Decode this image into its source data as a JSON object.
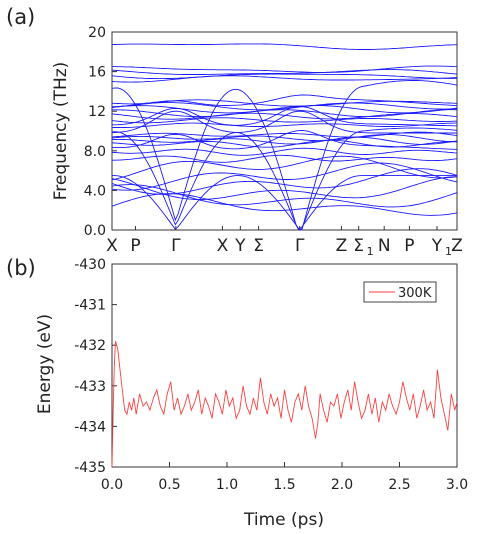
{
  "figure": {
    "panel_a_label": "(a)",
    "panel_b_label": "(b)"
  },
  "chart_data": [
    {
      "type": "line",
      "ylabel": "Frequency (THz)",
      "ylim": [
        0,
        20
      ],
      "yticks": [
        "0.0",
        "4.0",
        "8.0",
        "12",
        "16",
        "20"
      ],
      "xticks": [
        {
          "label": "X",
          "sub": "",
          "pos": 0.0
        },
        {
          "label": "P",
          "sub": "",
          "pos": 0.068
        },
        {
          "label": "Γ",
          "sub": "",
          "pos": 0.185
        },
        {
          "label": "X",
          "sub": "",
          "pos": 0.32
        },
        {
          "label": "Y",
          "sub": "",
          "pos": 0.372
        },
        {
          "label": "Σ",
          "sub": "",
          "pos": 0.425
        },
        {
          "label": "Γ",
          "sub": "",
          "pos": 0.544
        },
        {
          "label": "Z",
          "sub": "",
          "pos": 0.665
        },
        {
          "label": "Σ",
          "sub": "1",
          "pos": 0.715
        },
        {
          "label": "N",
          "sub": "",
          "pos": 0.789
        },
        {
          "label": "P",
          "sub": "",
          "pos": 0.862
        },
        {
          "label": "Y",
          "sub": "1",
          "pos": 0.942
        },
        {
          "label": "Z",
          "sub": "",
          "pos": 1.0
        }
      ],
      "series_color": "#1a1aff",
      "flat_band_levels": [
        18.6,
        16.2,
        15.9,
        15.6,
        15.3,
        12.8,
        12.5,
        12.2,
        11.8,
        11.5,
        11.1,
        10.6,
        9.6,
        9.3,
        9.0,
        8.7,
        7.9,
        7.2
      ],
      "acoustic_zero_points": [
        0.185,
        0.544
      ]
    },
    {
      "type": "line",
      "xlabel": "Time (ps)",
      "ylabel": "Energy (eV)",
      "xlim": [
        0.0,
        3.0
      ],
      "ylim": [
        -435,
        -430
      ],
      "xticks": [
        "0.0",
        "0.5",
        "1.0",
        "1.5",
        "2.0",
        "2.5",
        "3.0"
      ],
      "yticks": [
        "-430",
        "-431",
        "-432",
        "-433",
        "-434",
        "-435"
      ],
      "series": [
        {
          "name": "300K",
          "color": "#ff4040",
          "x": [
            0.0,
            0.01,
            0.02,
            0.03,
            0.05,
            0.07,
            0.09,
            0.11,
            0.13,
            0.15,
            0.17,
            0.19,
            0.21,
            0.24,
            0.27,
            0.3,
            0.33,
            0.36,
            0.39,
            0.42,
            0.45,
            0.48,
            0.51,
            0.54,
            0.57,
            0.6,
            0.63,
            0.66,
            0.69,
            0.72,
            0.75,
            0.78,
            0.81,
            0.84,
            0.87,
            0.9,
            0.93,
            0.96,
            0.99,
            1.02,
            1.05,
            1.08,
            1.11,
            1.14,
            1.17,
            1.2,
            1.23,
            1.26,
            1.29,
            1.32,
            1.35,
            1.38,
            1.41,
            1.44,
            1.47,
            1.5,
            1.53,
            1.56,
            1.59,
            1.62,
            1.65,
            1.68,
            1.71,
            1.74,
            1.77,
            1.79,
            1.81,
            1.84,
            1.87,
            1.9,
            1.93,
            1.96,
            1.99,
            2.02,
            2.05,
            2.08,
            2.11,
            2.14,
            2.17,
            2.2,
            2.23,
            2.26,
            2.29,
            2.32,
            2.35,
            2.38,
            2.41,
            2.44,
            2.47,
            2.5,
            2.53,
            2.56,
            2.59,
            2.62,
            2.65,
            2.68,
            2.71,
            2.74,
            2.77,
            2.8,
            2.83,
            2.86,
            2.89,
            2.92,
            2.95,
            2.98,
            3.0
          ],
          "values": [
            -435.0,
            -433.6,
            -432.5,
            -431.9,
            -432.1,
            -432.6,
            -433.1,
            -433.6,
            -433.7,
            -433.4,
            -433.6,
            -433.3,
            -433.7,
            -433.2,
            -433.5,
            -433.4,
            -433.6,
            -433.3,
            -433.1,
            -433.5,
            -433.7,
            -433.2,
            -432.9,
            -433.6,
            -433.3,
            -433.7,
            -433.5,
            -433.2,
            -433.6,
            -433.4,
            -433.1,
            -433.7,
            -433.3,
            -433.5,
            -433.8,
            -433.2,
            -433.4,
            -433.7,
            -433.1,
            -433.5,
            -433.3,
            -433.8,
            -433.6,
            -433.0,
            -433.5,
            -433.7,
            -433.3,
            -433.6,
            -432.8,
            -433.4,
            -433.7,
            -433.2,
            -433.5,
            -433.3,
            -433.8,
            -433.1,
            -433.6,
            -433.9,
            -433.4,
            -433.2,
            -433.6,
            -433.0,
            -433.5,
            -433.8,
            -434.3,
            -433.9,
            -433.2,
            -433.6,
            -433.9,
            -433.4,
            -433.5,
            -433.2,
            -433.8,
            -433.4,
            -433.1,
            -433.6,
            -432.9,
            -433.4,
            -433.8,
            -433.6,
            -433.2,
            -433.7,
            -433.3,
            -433.9,
            -433.4,
            -433.6,
            -433.2,
            -433.5,
            -433.7,
            -433.4,
            -432.9,
            -433.3,
            -433.6,
            -433.2,
            -433.8,
            -433.5,
            -433.1,
            -433.6,
            -433.4,
            -433.8,
            -432.6,
            -433.3,
            -433.7,
            -434.1,
            -433.2,
            -433.6,
            -433.4
          ]
        }
      ]
    }
  ]
}
